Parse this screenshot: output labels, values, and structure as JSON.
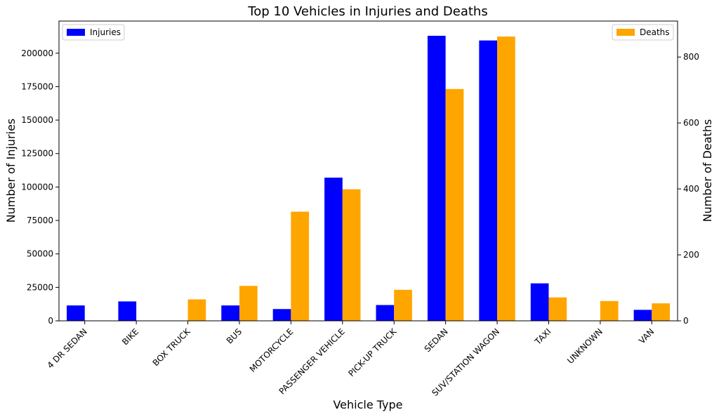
{
  "chart_data": {
    "type": "bar",
    "title": "Top 10 Vehicles in Injuries and Deaths",
    "xlabel": "Vehicle Type",
    "ylabel_left": "Number of Injuries",
    "ylabel_right": "Number of Deaths",
    "categories": [
      "4 DR SEDAN",
      "BIKE",
      "BOX TRUCK",
      "BUS",
      "MOTORCYCLE",
      "PASSENGER VEHICLE",
      "PICK-UP TRUCK",
      "SEDAN",
      "SUV/STATION WAGON",
      "TAXI",
      "UNKNOWN",
      "VAN"
    ],
    "series": [
      {
        "name": "Injuries",
        "axis": "left",
        "color": "#0000ff",
        "values": [
          11500,
          14500,
          null,
          11500,
          8800,
          107000,
          11800,
          213000,
          209500,
          28000,
          null,
          8200
        ]
      },
      {
        "name": "Deaths",
        "axis": "right",
        "color": "#ffa500",
        "values": [
          null,
          null,
          65,
          106,
          331,
          399,
          94,
          703,
          862,
          71,
          60,
          53
        ]
      }
    ],
    "ylim_left": [
      0,
      224000
    ],
    "yticks_left": [
      0,
      25000,
      50000,
      75000,
      100000,
      125000,
      150000,
      175000,
      200000
    ],
    "yticks_left_labels": [
      "0",
      "25000",
      "50000",
      "75000",
      "100000",
      "125000",
      "150000",
      "175000",
      "200000"
    ],
    "ylim_right": [
      0,
      909
    ],
    "yticks_right": [
      0,
      200,
      400,
      600,
      800
    ],
    "yticks_right_labels": [
      "0",
      "200",
      "400",
      "600",
      "800"
    ],
    "legend_injuries_position": "top-left",
    "legend_deaths_position": "top-right",
    "grid": false
  }
}
